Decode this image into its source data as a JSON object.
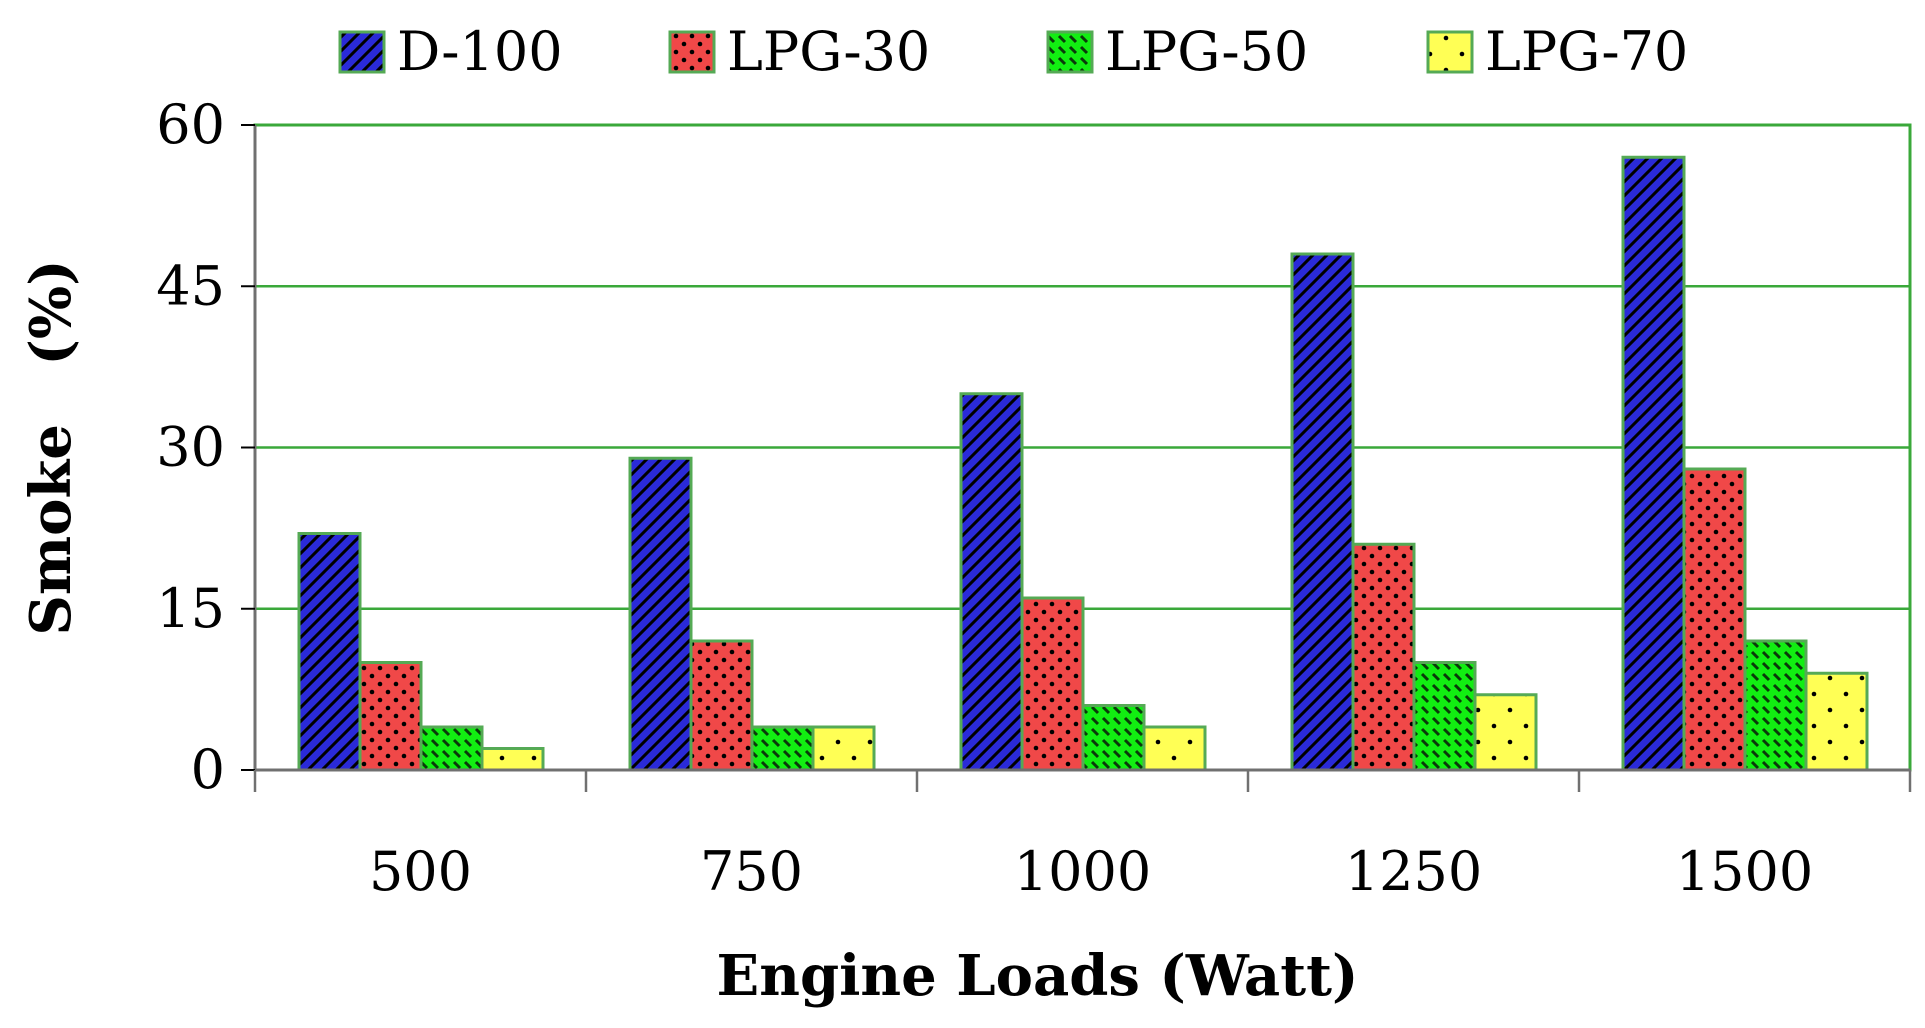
{
  "chart_data": {
    "type": "bar",
    "title": "",
    "xlabel": "Engine Loads (Watt)",
    "ylabel": "Smoke   (%)",
    "categories": [
      "500",
      "750",
      "1000",
      "1250",
      "1500"
    ],
    "ylim": [
      0,
      60
    ],
    "yticks": [
      0,
      15,
      30,
      45,
      60
    ],
    "grid": true,
    "legend_position": "top",
    "series": [
      {
        "name": "D-100",
        "color": "#2a2ad8",
        "pattern": "dark-diagonal",
        "values": [
          22,
          29,
          35,
          48,
          57
        ]
      },
      {
        "name": "LPG-30",
        "color": "#f04848",
        "pattern": "dots",
        "values": [
          10,
          12,
          16,
          21,
          28
        ]
      },
      {
        "name": "LPG-50",
        "color": "#12ee12",
        "pattern": "dashed-diagonal",
        "values": [
          4,
          4,
          6,
          10,
          12
        ]
      },
      {
        "name": "LPG-70",
        "color": "#ffff55",
        "pattern": "sparse-dots",
        "values": [
          2,
          4,
          4,
          7,
          9
        ]
      }
    ],
    "styles": {
      "border": "#3aa83a",
      "grid": "#3aa83a",
      "bar_outline": "#55aa55"
    }
  }
}
